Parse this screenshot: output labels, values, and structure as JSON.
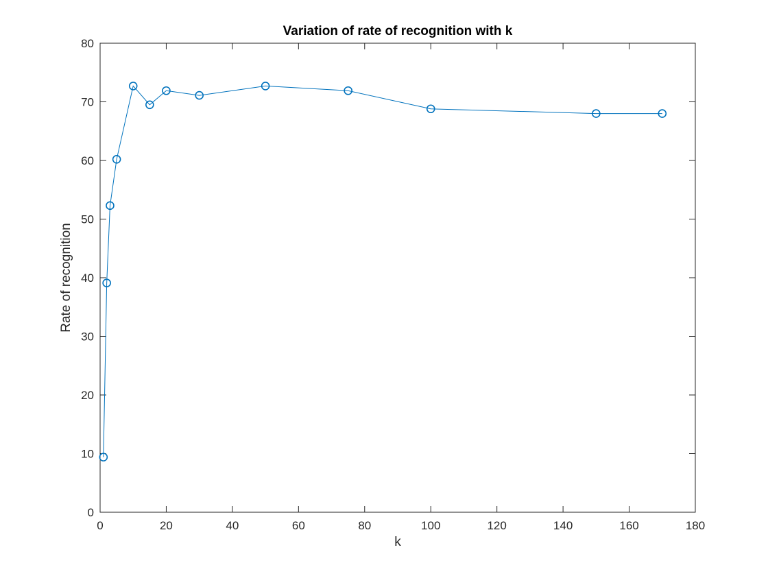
{
  "chart_data": {
    "type": "line",
    "title": "Variation of rate of recognition with k",
    "xlabel": "k",
    "ylabel": "Rate of recognition",
    "xlim": [
      0,
      180
    ],
    "ylim": [
      0,
      80
    ],
    "x_ticks": [
      0,
      20,
      40,
      60,
      80,
      100,
      120,
      140,
      160,
      180
    ],
    "y_ticks": [
      0,
      10,
      20,
      30,
      40,
      50,
      60,
      70,
      80
    ],
    "grid": false,
    "marker": "circle",
    "colors": {
      "series": "#0072BD",
      "axes": "#262626"
    },
    "series": [
      {
        "x": [
          1,
          2,
          3,
          5,
          10,
          15,
          20,
          30,
          50,
          75,
          100,
          150,
          170
        ],
        "y": [
          9.4,
          39.1,
          52.3,
          60.2,
          72.7,
          69.5,
          71.9,
          71.1,
          72.7,
          71.9,
          68.8,
          68.0,
          68.0
        ]
      }
    ]
  }
}
